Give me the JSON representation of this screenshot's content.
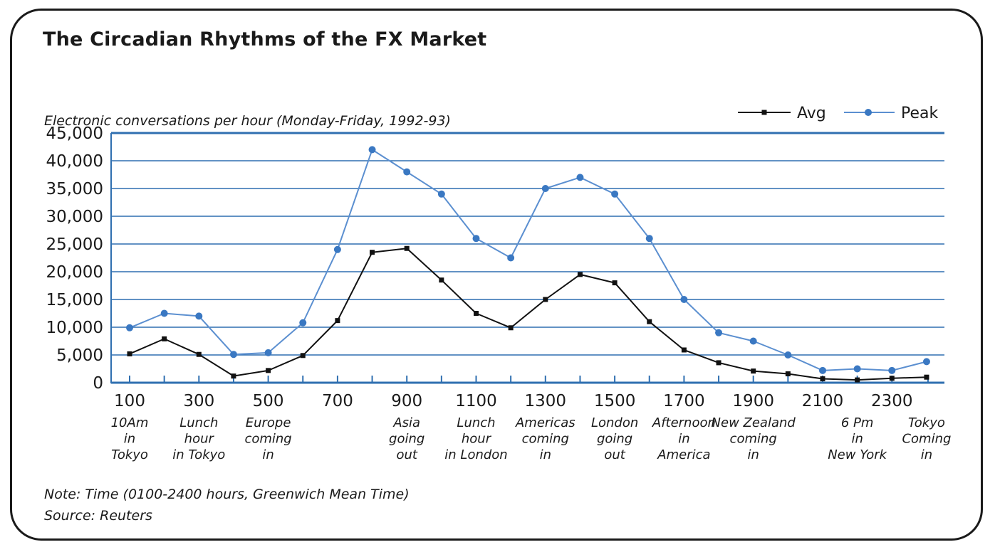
{
  "title": "The Circadian Rhythms of the FX Market",
  "notes": {
    "note": "Note: Time (0100-2400 hours, Greenwich Mean Time)",
    "source": "Source: Reuters"
  },
  "colors": {
    "grid": "#2f6fb0",
    "avg": "#111111",
    "peak": "#5b8fd0",
    "peak_marker": "#3a78c2"
  },
  "chart_data": {
    "type": "line",
    "title": "The Circadian Rhythms of the FX Market",
    "ylabel": "Electronic conversations per hour (Monday-Friday, 1992-93)",
    "xlabel": "",
    "ylim": [
      0,
      45000
    ],
    "yticks": [
      {
        "value": 0,
        "label": "0"
      },
      {
        "value": 5000,
        "label": "5,000"
      },
      {
        "value": 10000,
        "label": "10,000"
      },
      {
        "value": 15000,
        "label": "15,000"
      },
      {
        "value": 20000,
        "label": "20,000"
      },
      {
        "value": 25000,
        "label": "25,000"
      },
      {
        "value": 30000,
        "label": "30,000"
      },
      {
        "value": 35000,
        "label": "35,000"
      },
      {
        "value": 40000,
        "label": "40,000"
      },
      {
        "value": 45000,
        "label": "45,000"
      }
    ],
    "x": [
      100,
      200,
      300,
      400,
      500,
      600,
      700,
      800,
      900,
      1000,
      1100,
      1200,
      1300,
      1400,
      1500,
      1600,
      1700,
      1800,
      1900,
      2000,
      2100,
      2200,
      2300,
      2400
    ],
    "xtick_labels": [
      {
        "x": 100,
        "label": "100"
      },
      {
        "x": 300,
        "label": "300"
      },
      {
        "x": 500,
        "label": "500"
      },
      {
        "x": 700,
        "label": "700"
      },
      {
        "x": 900,
        "label": "900"
      },
      {
        "x": 1100,
        "label": "1100"
      },
      {
        "x": 1300,
        "label": "1300"
      },
      {
        "x": 1500,
        "label": "1500"
      },
      {
        "x": 1700,
        "label": "1700"
      },
      {
        "x": 1900,
        "label": "1900"
      },
      {
        "x": 2100,
        "label": "2100"
      },
      {
        "x": 2300,
        "label": "2300"
      }
    ],
    "series": [
      {
        "name": "Avg",
        "values": [
          5200,
          7900,
          5100,
          1200,
          2200,
          4900,
          11200,
          23500,
          24200,
          18500,
          12500,
          9900,
          15000,
          19500,
          18000,
          11000,
          5900,
          3600,
          2100,
          1600,
          700,
          500,
          800,
          1000
        ]
      },
      {
        "name": "Peak",
        "values": [
          9900,
          12500,
          12000,
          5100,
          5400,
          10800,
          24000,
          42000,
          38000,
          34000,
          26000,
          22500,
          35000,
          37000,
          34000,
          26000,
          15000,
          9000,
          7500,
          5000,
          2200,
          2500,
          2200,
          3800
        ]
      }
    ],
    "annotations": [
      {
        "x": 100,
        "lines": [
          "10Am",
          "in",
          "Tokyo"
        ]
      },
      {
        "x": 300,
        "lines": [
          "Lunch",
          "hour",
          "in Tokyo"
        ]
      },
      {
        "x": 500,
        "lines": [
          "Europe",
          "coming",
          "in"
        ]
      },
      {
        "x": 900,
        "lines": [
          "Asia",
          "going",
          "out"
        ]
      },
      {
        "x": 1100,
        "lines": [
          "Lunch",
          "hour",
          "in London"
        ]
      },
      {
        "x": 1300,
        "lines": [
          "Americas",
          "coming",
          "in"
        ]
      },
      {
        "x": 1500,
        "lines": [
          "London",
          "going",
          "out"
        ]
      },
      {
        "x": 1700,
        "lines": [
          "Afternoon",
          "in",
          "America"
        ]
      },
      {
        "x": 1900,
        "lines": [
          "New Zealand",
          "coming",
          "in"
        ]
      },
      {
        "x": 2200,
        "lines": [
          "6 Pm",
          "in",
          "New York"
        ]
      },
      {
        "x": 2400,
        "lines": [
          "Tokyo",
          "Coming",
          "in"
        ]
      }
    ],
    "legend": {
      "position": "top-right",
      "entries": [
        "Avg",
        "Peak"
      ]
    },
    "grid": true
  }
}
